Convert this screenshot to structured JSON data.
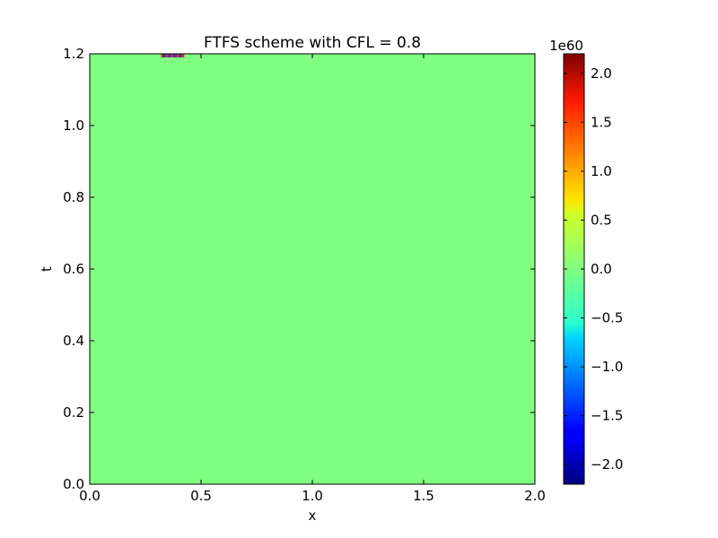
{
  "chart_data": {
    "type": "heatmap",
    "title": "FTFS scheme with CFL = 0.8",
    "xlabel": "x",
    "ylabel": "t",
    "xlim": [
      0.0,
      2.0
    ],
    "ylim": [
      0.0,
      1.2
    ],
    "x_ticks": [
      0.0,
      0.5,
      1.0,
      1.5,
      2.0
    ],
    "x_tick_labels": [
      "0.0",
      "0.5",
      "1.0",
      "1.5",
      "2.0"
    ],
    "y_ticks": [
      0.0,
      0.2,
      0.4,
      0.6,
      0.8,
      1.0,
      1.2
    ],
    "y_tick_labels": [
      "0.0",
      "0.2",
      "0.4",
      "0.6",
      "0.8",
      "1.0",
      "1.2"
    ],
    "field": {
      "background_value": 0.0,
      "disturbance": {
        "x_range": [
          0.32,
          0.42
        ],
        "t_range": [
          1.19,
          1.2
        ],
        "values": [
          -2.2,
          2.2
        ]
      }
    },
    "colorbar": {
      "colormap": "jet",
      "range": [
        -2.2,
        2.2
      ],
      "ticks": [
        -2.0,
        -1.5,
        -1.0,
        -0.5,
        0.0,
        0.5,
        1.0,
        1.5,
        2.0
      ],
      "tick_labels": [
        "−2.0",
        "−1.5",
        "−1.0",
        "−0.5",
        "0.0",
        "0.5",
        "1.0",
        "1.5",
        "2.0"
      ],
      "offset_label": "1e60"
    },
    "grid": false
  },
  "colors": {
    "field_background": "#80ff80",
    "axis": "#000000"
  }
}
